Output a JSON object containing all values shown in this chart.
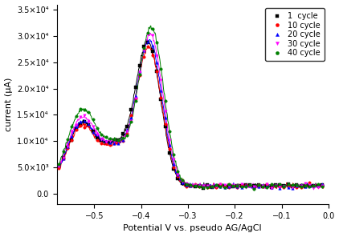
{
  "xlabel": "Potential V vs. pseudo AG/AgCl",
  "ylabel": "current (μA)",
  "xlim": [
    -0.58,
    0.0
  ],
  "ylim": [
    -2000,
    36000
  ],
  "yticks": [
    0.0,
    5000.0,
    10000.0,
    15000.0,
    20000.0,
    25000.0,
    30000.0,
    35000.0
  ],
  "ytick_labels": [
    "0.0",
    "5.0×10³",
    "1.0×10⁴",
    "1.5×10⁴",
    "2.0×10⁴",
    "2.5×10⁴",
    "3.0×10⁴",
    "3.5×10⁴"
  ],
  "xticks": [
    -0.5,
    -0.4,
    -0.3,
    -0.2,
    -0.1,
    0.0
  ],
  "series": [
    {
      "label": "1  cycle",
      "color": "#000000",
      "marker": "s",
      "ms": 2.5
    },
    {
      "label": "10 cycle",
      "color": "#ff0000",
      "marker": "o",
      "ms": 2.5
    },
    {
      "label": "20 cycle",
      "color": "#0000ff",
      "marker": "^",
      "ms": 2.5
    },
    {
      "label": "30 cycle",
      "color": "#ff00ff",
      "marker": "v",
      "ms": 2.5
    },
    {
      "label": "40 cycle",
      "color": "#008000",
      "marker": "o",
      "ms": 2.5
    }
  ],
  "peak_heights": [
    27500,
    26500,
    27800,
    29000,
    30500
  ],
  "peak_centers": [
    -0.385,
    -0.383,
    -0.382,
    -0.38,
    -0.378
  ],
  "left_heights": [
    12000,
    11500,
    12200,
    13000,
    14500
  ],
  "valley_depths": [
    6200,
    6000,
    6300,
    6500,
    6800
  ],
  "bg_color": "#ffffff",
  "legend_fontsize": 7,
  "axis_fontsize": 8,
  "tick_fontsize": 7
}
